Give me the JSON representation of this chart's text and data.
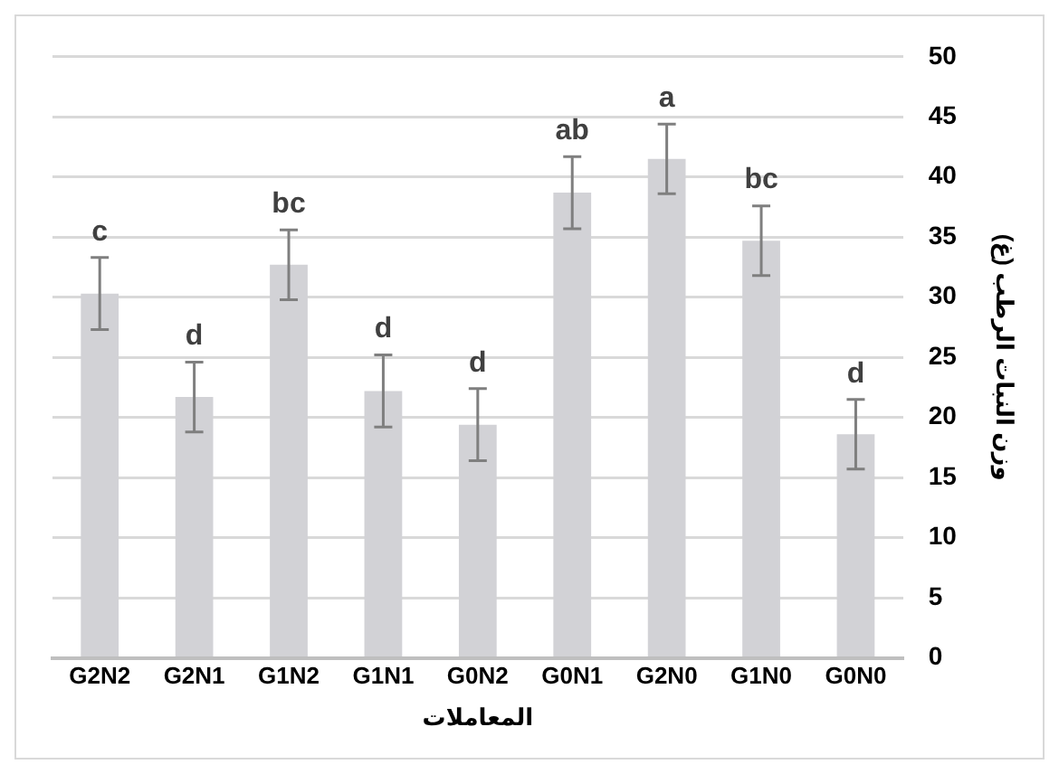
{
  "chart_data": {
    "type": "bar",
    "xlabel": "المعاملات",
    "ylabel": "وزن النبات الرطب (غ)",
    "categories": [
      "G2N2",
      "G2N1",
      "G1N2",
      "G1N1",
      "G0N2",
      "G0N1",
      "G2N0",
      "G1N0",
      "G0N0"
    ],
    "values": [
      30.3,
      21.7,
      32.7,
      22.2,
      19.4,
      38.7,
      41.5,
      34.7,
      18.6
    ],
    "errors": [
      3,
      2.9,
      2.9,
      3,
      3,
      3,
      2.9,
      2.9,
      2.9
    ],
    "color": "#d2d2d6",
    "ylim": [
      0,
      50
    ],
    "yticks": [
      0,
      5,
      10,
      15,
      20,
      25,
      30,
      35,
      40,
      45,
      50
    ],
    "grid": "y",
    "legend": false,
    "annotations": [
      "c",
      "d",
      "bc",
      "d",
      "d",
      "ab",
      "a",
      "bc",
      "d"
    ]
  }
}
